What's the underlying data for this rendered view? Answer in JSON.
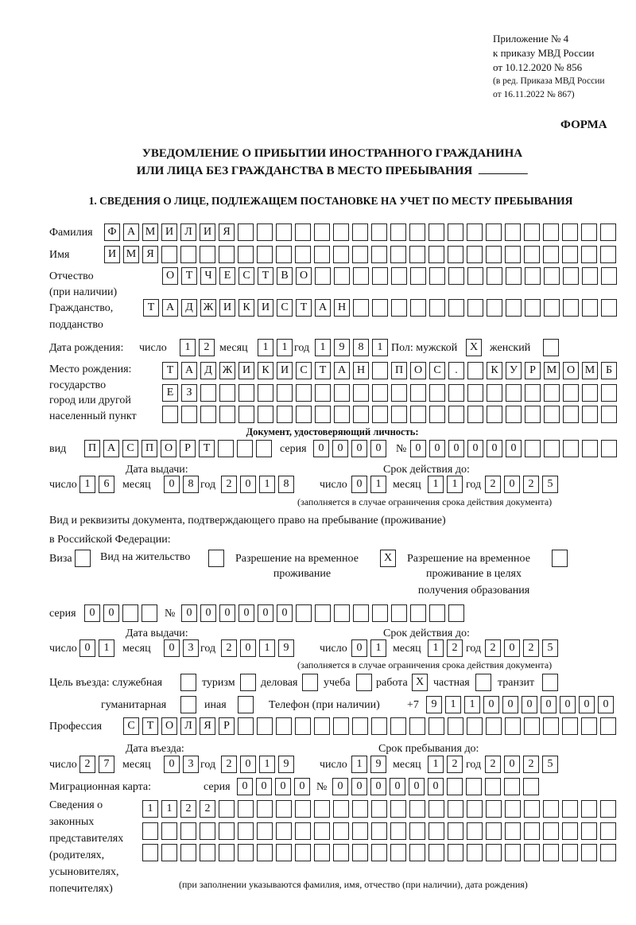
{
  "header": {
    "annex": "Приложение № 4",
    "order": "к приказу МВД России",
    "order_date": "от 10.12.2020 № 856",
    "revision1": "(в ред. Приказа МВД России",
    "revision2": "от 16.11.2022 № 867)",
    "form_label": "ФОРМА",
    "title1": "УВЕДОМЛЕНИЕ О ПРИБЫТИИ ИНОСТРАННОГО ГРАЖДАНИНА",
    "title2": "ИЛИ ЛИЦА БЕЗ ГРАЖДАНСТВА В МЕСТО ПРЕБЫВАНИЯ"
  },
  "section1": {
    "heading": "1. СВЕДЕНИЯ О ЛИЦЕ, ПОДЛЕЖАЩЕМ ПОСТАНОВКЕ НА УЧЕТ ПО МЕСТУ ПРЕБЫВАНИЯ",
    "date_labels": {
      "day": "число",
      "month": "месяц",
      "year": "год"
    },
    "surname": {
      "label": "Фамилия",
      "value": "ФАМИЛИЯ"
    },
    "name": {
      "label": "Имя",
      "value": "ИМЯ"
    },
    "patronymic": {
      "label": "Отчество",
      "label2": "(при наличии)",
      "value": "ОТЧЕСТВО"
    },
    "citizenship": {
      "label": "Гражданство,",
      "label2": "подданство",
      "value": "ТАДЖИКИСТАН"
    },
    "birth_date": {
      "label": "Дата рождения:",
      "day": "12",
      "month": "11",
      "year": "1981"
    },
    "sex": {
      "label_male": "Пол: мужской",
      "male": "X",
      "label_female": "женский",
      "female": ""
    },
    "birth_place": {
      "label1": "Место рождения:",
      "label2": "государство",
      "label3": "город или другой",
      "label4": "населенный пункт",
      "row1": "ТАДЖИКИСТАН ПОС. КУРМОМБ",
      "row2": "ЕЗ",
      "row3": ""
    },
    "id_document": {
      "heading": "Документ, удостоверяющий личность:",
      "kind_label": "вид",
      "kind": "ПАСПОРТ",
      "series_label": "серия",
      "series": "0000",
      "number_label": "№",
      "number": "000000",
      "issue_label": "Дата выдачи:",
      "issue_day": "16",
      "issue_month": "08",
      "issue_year": "2018",
      "valid_label": "Срок действия до:",
      "valid_day": "01",
      "valid_month": "11",
      "valid_year": "2025",
      "note": "(заполняется в случае ограничения срока действия документа)"
    },
    "residence_doc": {
      "heading1": "Вид и реквизиты документа, подтверждающего право на пребывание (проживание)",
      "heading2": "в Российской Федерации:",
      "visa_label": "Виза",
      "visa": "",
      "residence_permit_label": "Вид на жительство",
      "residence_permit": "",
      "temp_permit_label1": "Разрешение на временное",
      "temp_permit_label2": "проживание",
      "temp_permit": "X",
      "edu_permit_label1": "Разрешение на временное",
      "edu_permit_label2": "проживание в целях",
      "edu_permit_label3": "получения образования",
      "edu_permit": "",
      "series_label": "серия",
      "series": "00",
      "number_label": "№",
      "number": "000000",
      "issue_label": "Дата выдачи:",
      "issue_day": "01",
      "issue_month": "03",
      "issue_year": "2019",
      "valid_label": "Срок действия до:",
      "valid_day": "01",
      "valid_month": "12",
      "valid_year": "2025",
      "note": "(заполняется в случае ограничения срока действия документа)"
    },
    "purpose": {
      "label": "Цель въезда: служебная",
      "official": "",
      "tourism_label": "туризм",
      "tourism": "",
      "business_label": "деловая",
      "business": "",
      "study_label": "учеба",
      "study": "",
      "work_label": "работа",
      "work": "X",
      "private_label": "частная",
      "private": "",
      "transit_label": "транзит",
      "transit": "",
      "humanitarian_label": "гуманитарная",
      "humanitarian": "",
      "other_label": "иная",
      "other": ""
    },
    "phone": {
      "label": "Телефон (при наличии)",
      "prefix": "+7",
      "value": "9110000000"
    },
    "profession": {
      "label": "Профессия",
      "value": "СТОЛЯР"
    },
    "entry": {
      "entry_label": "Дата въезда:",
      "entry_day": "27",
      "entry_month": "03",
      "entry_year": "2019",
      "stay_label": "Срок пребывания до:",
      "stay_day": "19",
      "stay_month": "12",
      "stay_year": "2025"
    },
    "migration_card": {
      "label": "Миграционная карта:",
      "series_label": "серия",
      "series": "0000",
      "number_label": "№",
      "number": "000000"
    },
    "representatives": {
      "label1": "Сведения о",
      "label2": "законных",
      "label3": "представителях",
      "label4": "(родителях,",
      "label5": "усыновителях,",
      "label6": "попечителях)",
      "row1": "1122",
      "row2": "",
      "row3": "",
      "note": "(при заполнении указываются фамилия, имя, отчество (при наличии), дата рождения)"
    }
  }
}
